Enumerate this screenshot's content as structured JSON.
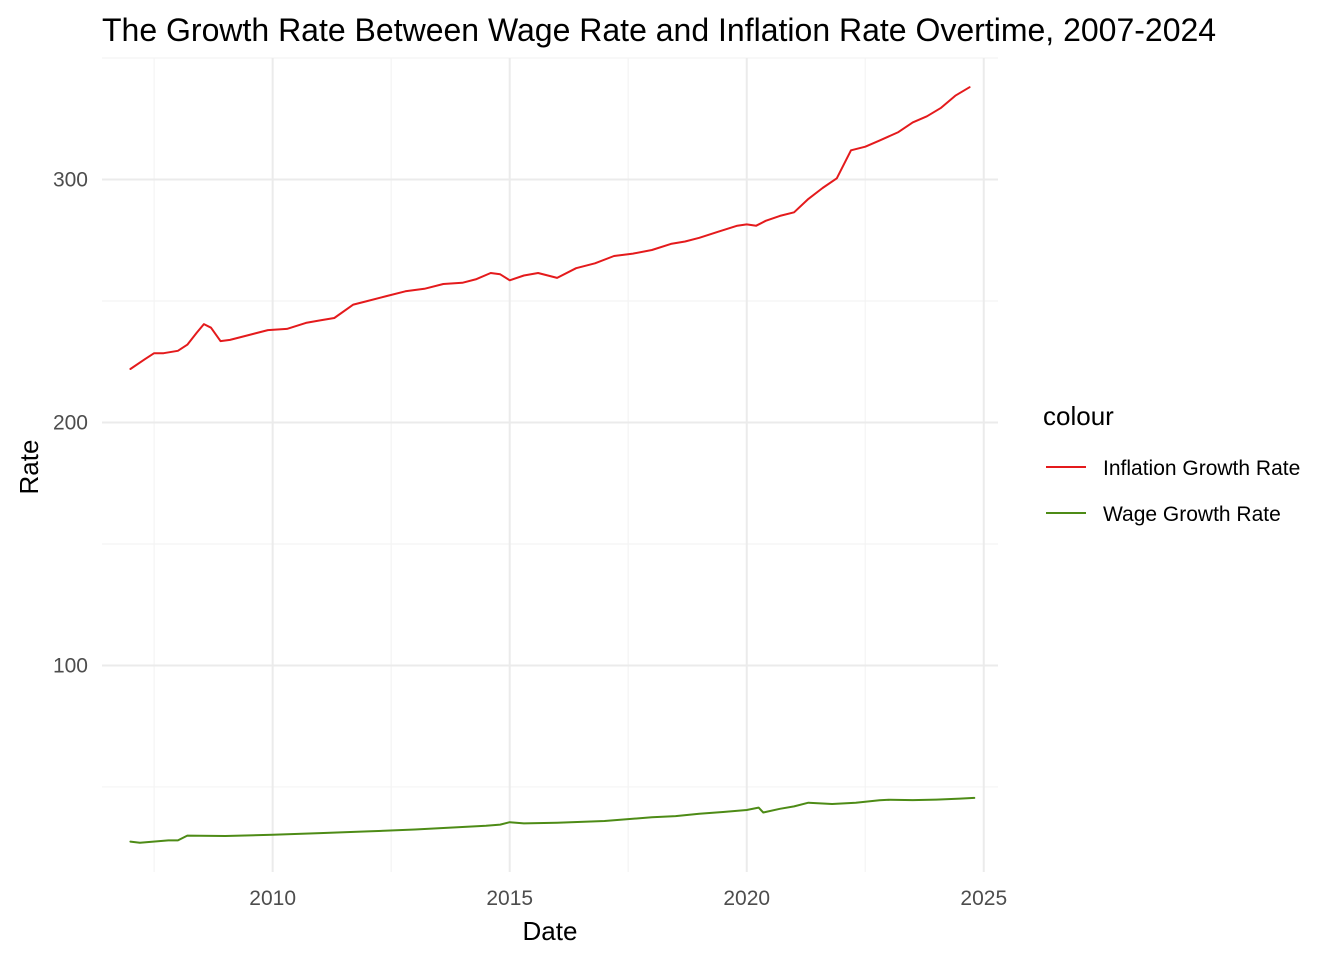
{
  "chart_data": {
    "type": "line",
    "title": "The Growth Rate Between Wage Rate and Inflation Rate Overtime, 2007-2024",
    "xlabel": "Date",
    "ylabel": "Rate",
    "x_ticks": [
      "2010",
      "2015",
      "2020",
      "2025"
    ],
    "y_ticks": [
      "100",
      "200",
      "300"
    ],
    "xlim": [
      2006.4,
      2025.3
    ],
    "ylim": [
      15,
      350
    ],
    "grid": true,
    "legend": {
      "title": "colour",
      "placement": "right"
    },
    "series": [
      {
        "name": "Inflation Growth Rate",
        "color": "#e41a1c",
        "x": [
          2007.0,
          2007.3,
          2007.5,
          2007.7,
          2008.0,
          2008.2,
          2008.4,
          2008.55,
          2008.7,
          2008.9,
          2009.1,
          2009.5,
          2009.9,
          2010.3,
          2010.7,
          2011.0,
          2011.3,
          2011.7,
          2012.0,
          2012.4,
          2012.8,
          2013.2,
          2013.6,
          2014.0,
          2014.3,
          2014.6,
          2014.8,
          2015.0,
          2015.3,
          2015.6,
          2016.0,
          2016.4,
          2016.8,
          2017.2,
          2017.6,
          2018.0,
          2018.4,
          2018.7,
          2019.0,
          2019.4,
          2019.8,
          2020.0,
          2020.2,
          2020.4,
          2020.7,
          2021.0,
          2021.3,
          2021.6,
          2021.9,
          2022.2,
          2022.5,
          2022.8,
          2023.2,
          2023.5,
          2023.8,
          2024.1,
          2024.4,
          2024.7
        ],
        "values": [
          222,
          226,
          228.5,
          228.5,
          229.5,
          232,
          237,
          240.5,
          239,
          233.5,
          234,
          236,
          238,
          238.5,
          241,
          242,
          243,
          248.5,
          250,
          252,
          254,
          255,
          257,
          257.5,
          259,
          261.5,
          261,
          258.5,
          260.5,
          261.5,
          259.5,
          263.5,
          265.5,
          268.5,
          269.5,
          271,
          273.5,
          274.5,
          276,
          278.5,
          281,
          281.5,
          281,
          283,
          285,
          286.5,
          292,
          296.5,
          300.5,
          312,
          313.5,
          316,
          319.5,
          323.5,
          326,
          329.5,
          334.5,
          338
        ]
      },
      {
        "name": "Wage Growth Rate",
        "color": "#4d8b16",
        "x": [
          2007.0,
          2007.2,
          2007.8,
          2008.0,
          2008.2,
          2009.0,
          2010.0,
          2011.0,
          2012.0,
          2013.0,
          2014.0,
          2014.5,
          2014.8,
          2015.0,
          2015.3,
          2016.0,
          2017.0,
          2018.0,
          2018.5,
          2019.0,
          2019.5,
          2020.0,
          2020.25,
          2020.35,
          2020.7,
          2021.0,
          2021.3,
          2021.8,
          2022.3,
          2022.8,
          2023.0,
          2023.5,
          2024.0,
          2024.5,
          2024.8
        ],
        "values": [
          27.5,
          27,
          28,
          28,
          30,
          29.8,
          30.3,
          31,
          31.7,
          32.5,
          33.5,
          34,
          34.5,
          35.5,
          35,
          35.3,
          36,
          37.5,
          38,
          39,
          39.7,
          40.5,
          41.5,
          39.5,
          41,
          42,
          43.5,
          43,
          43.5,
          44.5,
          44.7,
          44.6,
          44.8,
          45.2,
          45.5
        ]
      }
    ]
  }
}
